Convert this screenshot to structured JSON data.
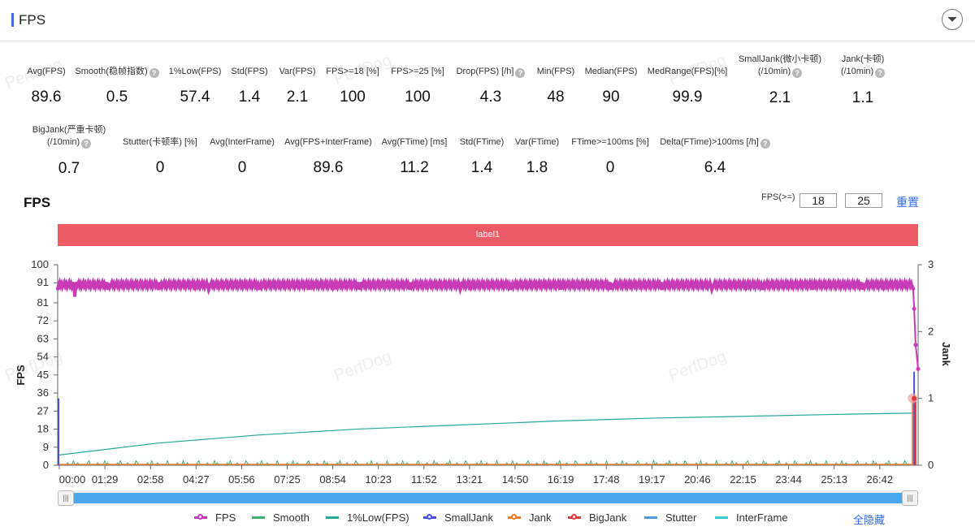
{
  "header": {
    "title": "FPS",
    "collapse_icon": "chevron-down-icon"
  },
  "watermark": "PerfDog",
  "metrics_row1": [
    {
      "label": "Avg(FPS)",
      "value": "89.6",
      "help": false
    },
    {
      "label": "Smooth(稳帧指数)",
      "value": "0.5",
      "help": true
    },
    {
      "label": "1%Low(FPS)",
      "value": "57.4",
      "help": false
    },
    {
      "label": "Std(FPS)",
      "value": "1.4",
      "help": false
    },
    {
      "label": "Var(FPS)",
      "value": "2.1",
      "help": false
    },
    {
      "label": "FPS>=18 [%]",
      "value": "100",
      "help": false
    },
    {
      "label": "FPS>=25 [%]",
      "value": "100",
      "help": false
    },
    {
      "label": "Drop(FPS) [/h]",
      "value": "4.3",
      "help": true
    },
    {
      "label": "Min(FPS)",
      "value": "48",
      "help": false
    },
    {
      "label": "Median(FPS)",
      "value": "90",
      "help": false
    },
    {
      "label": "MedRange(FPS)[%]",
      "value": "99.9",
      "help": false
    },
    {
      "label": "SmallJank(微小卡顿)",
      "label2": "(/10min)",
      "value": "2.1",
      "help": true
    },
    {
      "label": "Jank(卡顿)",
      "label2": "(/10min)",
      "value": "1.1",
      "help": true
    }
  ],
  "metrics_row2": [
    {
      "label": "BigJank(严重卡顿)",
      "label2": "(/10min)",
      "value": "0.7",
      "help": true
    },
    {
      "label": "Stutter(卡顿率) [%]",
      "value": "0",
      "help": false
    },
    {
      "label": "Avg(InterFrame)",
      "value": "0",
      "help": false
    },
    {
      "label": "Avg(FPS+InterFrame)",
      "value": "89.6",
      "help": false
    },
    {
      "label": "Avg(FTime) [ms]",
      "value": "11.2",
      "help": false
    },
    {
      "label": "Std(FTime)",
      "value": "1.4",
      "help": false
    },
    {
      "label": "Var(FTime)",
      "value": "1.8",
      "help": false
    },
    {
      "label": "FTime>=100ms [%]",
      "value": "0",
      "help": false
    },
    {
      "label": "Delta(FTime)>100ms [/h]",
      "value": "6.4",
      "help": true
    }
  ],
  "chart_section": {
    "title": "FPS",
    "fps_threshold_label": "FPS(>=)",
    "fps_threshold_1": "18",
    "fps_threshold_2": "25",
    "reset_label": "重置",
    "band_label": "label1",
    "hide_all_label": "全隐藏",
    "slider_grip": "|||"
  },
  "chart_data": {
    "type": "line",
    "ylabel": "FPS",
    "y2label": "Jank",
    "ylim": [
      0,
      100
    ],
    "y2lim": [
      0,
      3
    ],
    "yticks": [
      "100",
      "91",
      "81",
      "72",
      "63",
      "54",
      "45",
      "36",
      "27",
      "18",
      "9",
      "0"
    ],
    "y2ticks": [
      "3",
      "2",
      "1",
      "0"
    ],
    "xticks": [
      "00:00",
      "01:29",
      "02:58",
      "04:27",
      "05:56",
      "07:25",
      "08:54",
      "10:23",
      "11:52",
      "13:21",
      "14:50",
      "16:19",
      "17:48",
      "19:17",
      "20:46",
      "22:15",
      "23:44",
      "25:13",
      "26:42"
    ],
    "grid": false,
    "legend_position": "bottom",
    "series": [
      {
        "name": "FPS",
        "color": "#c83bb7",
        "style": "dot",
        "values_description_free": true,
        "points": [
          [
            0,
            90
          ],
          [
            5,
            90
          ],
          [
            30,
            89
          ],
          [
            60,
            90
          ],
          [
            90,
            88
          ],
          [
            120,
            90
          ],
          [
            150,
            90
          ],
          [
            180,
            89
          ],
          [
            200,
            90
          ],
          [
            230,
            90
          ],
          [
            260,
            89
          ],
          [
            290,
            90
          ],
          [
            320,
            90
          ],
          [
            350,
            90
          ],
          [
            380,
            89
          ],
          [
            410,
            90
          ],
          [
            440,
            90
          ],
          [
            470,
            90
          ],
          [
            500,
            89
          ],
          [
            530,
            90
          ],
          [
            560,
            90
          ],
          [
            590,
            90
          ],
          [
            620,
            89
          ],
          [
            650,
            90
          ],
          [
            680,
            90
          ],
          [
            710,
            90
          ],
          [
            740,
            89
          ],
          [
            770,
            90
          ],
          [
            800,
            90
          ],
          [
            830,
            90
          ],
          [
            860,
            90
          ],
          [
            890,
            89
          ],
          [
            920,
            90
          ],
          [
            950,
            90
          ],
          [
            980,
            90
          ],
          [
            1010,
            90
          ],
          [
            1040,
            89
          ],
          [
            1070,
            90
          ],
          [
            1100,
            90
          ],
          [
            1130,
            90
          ],
          [
            1160,
            89
          ],
          [
            1190,
            90
          ],
          [
            1220,
            90
          ],
          [
            1250,
            90
          ],
          [
            1280,
            89
          ],
          [
            1310,
            90
          ],
          [
            1340,
            90
          ],
          [
            1370,
            90
          ],
          [
            1400,
            89
          ],
          [
            1430,
            90
          ],
          [
            1460,
            90
          ],
          [
            1490,
            90
          ],
          [
            1520,
            89
          ],
          [
            1550,
            90
          ],
          [
            1580,
            90
          ],
          [
            1610,
            90
          ],
          [
            1640,
            90
          ],
          [
            1670,
            89
          ],
          [
            1700,
            90
          ],
          [
            1720,
            88
          ],
          [
            1722,
            78
          ],
          [
            1725,
            60
          ],
          [
            1730,
            48
          ]
        ]
      },
      {
        "name": "Smooth",
        "color": "#3bb36a",
        "style": "line",
        "approx": "0 to 2 noise along baseline"
      },
      {
        "name": "1%Low(FPS)",
        "color": "#23a89a",
        "style": "line",
        "points": [
          [
            0,
            5
          ],
          [
            200,
            11
          ],
          [
            400,
            15
          ],
          [
            600,
            18
          ],
          [
            800,
            20
          ],
          [
            1000,
            22
          ],
          [
            1200,
            23.5
          ],
          [
            1400,
            24.5
          ],
          [
            1600,
            25.5
          ],
          [
            1725,
            26
          ]
        ]
      },
      {
        "name": "SmallJank",
        "color": "#4a4ee6",
        "style": "line",
        "axis": "y2",
        "approx": "spike to 1.0 at 0:00 and to 1.4 near end"
      },
      {
        "name": "Jank",
        "color": "#f07a2a",
        "style": "line",
        "axis": "y2",
        "approx": "near 0, spike to 1.0 near end"
      },
      {
        "name": "BigJank",
        "color": "#e03a3a",
        "style": "line",
        "axis": "y2",
        "approx": "spike to 1.0 near end"
      },
      {
        "name": "Stutter",
        "color": "#4a9ae6",
        "style": "line",
        "axis": "y2"
      },
      {
        "name": "InterFrame",
        "color": "#3cc8d8",
        "style": "line"
      }
    ]
  }
}
